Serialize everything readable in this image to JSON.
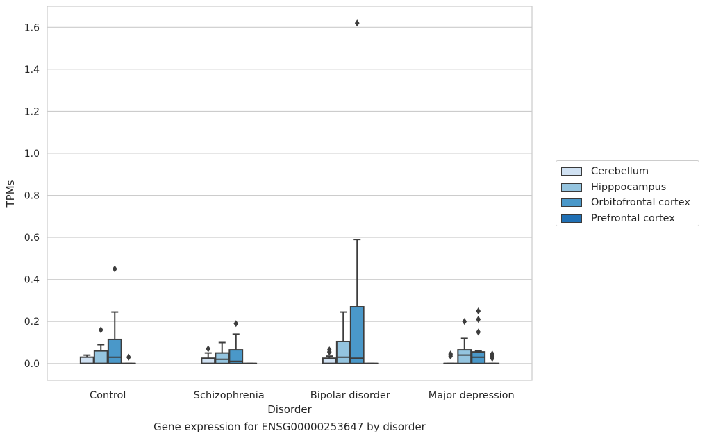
{
  "caption": "Gene expression for ENSG00000253647 by disorder",
  "chart_data": {
    "type": "box",
    "xlabel": "Disorder",
    "ylabel": "TPMs",
    "ylim": [
      -0.08,
      1.7
    ],
    "yticks": [
      0.0,
      0.2,
      0.4,
      0.6,
      0.8,
      1.0,
      1.2,
      1.4,
      1.6
    ],
    "ytick_labels": [
      "0.0",
      "0.2",
      "0.4",
      "0.6",
      "0.8",
      "1.0",
      "1.2",
      "1.4",
      "1.6"
    ],
    "categories": [
      "Control",
      "Schizophrenia",
      "Bipolar disorder",
      "Major depression"
    ],
    "grid": "horizontal",
    "legend_position": "right, outside plot",
    "series": [
      {
        "name": "Cerebellum",
        "color": "#d0e1f2",
        "boxes": [
          {
            "category": "Control",
            "whislo": 0.0,
            "q1": 0.0,
            "med": 0.0,
            "q3": 0.03,
            "whishi": 0.04,
            "fliers": []
          },
          {
            "category": "Schizophrenia",
            "whislo": 0.0,
            "q1": 0.0,
            "med": 0.0,
            "q3": 0.025,
            "whishi": 0.05,
            "fliers": [
              0.07
            ]
          },
          {
            "category": "Bipolar disorder",
            "whislo": 0.0,
            "q1": 0.0,
            "med": 0.0,
            "q3": 0.025,
            "whishi": 0.035,
            "fliers": [
              0.055,
              0.065
            ]
          },
          {
            "category": "Major depression",
            "whislo": 0.0,
            "q1": 0.0,
            "med": 0.0,
            "q3": 0.0,
            "whishi": 0.0,
            "fliers": [
              0.035,
              0.045
            ]
          }
        ]
      },
      {
        "name": "Hipppocampus",
        "color": "#94c4df",
        "boxes": [
          {
            "category": "Control",
            "whislo": 0.0,
            "q1": 0.0,
            "med": 0.0,
            "q3": 0.06,
            "whishi": 0.09,
            "fliers": [
              0.16
            ]
          },
          {
            "category": "Schizophrenia",
            "whislo": 0.0,
            "q1": 0.0,
            "med": 0.02,
            "q3": 0.05,
            "whishi": 0.1,
            "fliers": []
          },
          {
            "category": "Bipolar disorder",
            "whislo": 0.0,
            "q1": 0.0,
            "med": 0.03,
            "q3": 0.105,
            "whishi": 0.245,
            "fliers": []
          },
          {
            "category": "Major depression",
            "whislo": 0.0,
            "q1": 0.0,
            "med": 0.04,
            "q3": 0.065,
            "whishi": 0.12,
            "fliers": [
              0.2
            ]
          }
        ]
      },
      {
        "name": "Orbitofrontal cortex",
        "color": "#4a98c9",
        "boxes": [
          {
            "category": "Control",
            "whislo": 0.0,
            "q1": 0.0,
            "med": 0.03,
            "q3": 0.115,
            "whishi": 0.245,
            "fliers": [
              0.45
            ]
          },
          {
            "category": "Schizophrenia",
            "whislo": 0.0,
            "q1": 0.0,
            "med": 0.01,
            "q3": 0.065,
            "whishi": 0.14,
            "fliers": [
              0.19
            ]
          },
          {
            "category": "Bipolar disorder",
            "whislo": 0.0,
            "q1": 0.0,
            "med": 0.025,
            "q3": 0.27,
            "whishi": 0.59,
            "fliers": [
              1.62
            ]
          },
          {
            "category": "Major depression",
            "whislo": 0.0,
            "q1": 0.0,
            "med": 0.03,
            "q3": 0.055,
            "whishi": 0.06,
            "fliers": [
              0.15,
              0.21,
              0.25
            ]
          }
        ]
      },
      {
        "name": "Prefrontal cortex",
        "color": "#2070b4",
        "boxes": [
          {
            "category": "Control",
            "whislo": 0.0,
            "q1": 0.0,
            "med": 0.0,
            "q3": 0.0,
            "whishi": 0.0,
            "fliers": [
              0.03
            ]
          },
          {
            "category": "Schizophrenia",
            "whislo": 0.0,
            "q1": 0.0,
            "med": 0.0,
            "q3": 0.0,
            "whishi": 0.0,
            "fliers": []
          },
          {
            "category": "Bipolar disorder",
            "whislo": 0.0,
            "q1": 0.0,
            "med": 0.0,
            "q3": 0.0,
            "whishi": 0.0,
            "fliers": []
          },
          {
            "category": "Major depression",
            "whislo": 0.0,
            "q1": 0.0,
            "med": 0.0,
            "q3": 0.0,
            "whishi": 0.0,
            "fliers": [
              0.025,
              0.035,
              0.045
            ]
          }
        ]
      }
    ]
  }
}
